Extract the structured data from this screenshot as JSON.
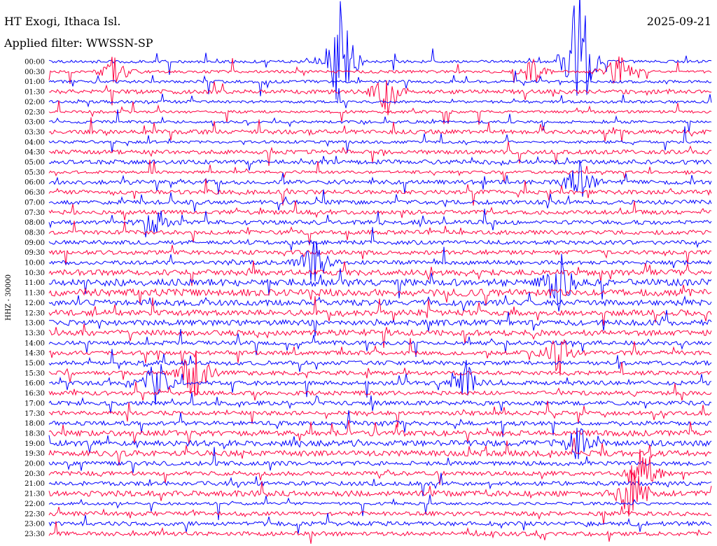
{
  "header": {
    "station": "HT Exogi, Ithaca Isl.",
    "date": "2025-09-21",
    "filter": "Applied filter: WWSSN-SP"
  },
  "chart_data": {
    "type": "line",
    "title": "HT Exogi, Ithaca Isl.",
    "subtitle": "Applied filter: WWSSN-SP",
    "ylabel": "HHZ - 30000",
    "date": "2025-09-21",
    "grid": false,
    "colors": [
      "#0000ff",
      "#ff0040"
    ],
    "rows": [
      "00:00",
      "00:30",
      "01:00",
      "01:30",
      "02:00",
      "02:30",
      "03:00",
      "03:30",
      "04:00",
      "04:30",
      "05:00",
      "05:30",
      "06:00",
      "06:30",
      "07:00",
      "07:30",
      "08:00",
      "08:30",
      "09:00",
      "09:30",
      "10:00",
      "10:30",
      "11:00",
      "11:30",
      "12:00",
      "12:30",
      "13:00",
      "13:30",
      "14:00",
      "14:30",
      "15:00",
      "15:30",
      "16:00",
      "16:30",
      "17:00",
      "17:30",
      "18:00",
      "18:30",
      "19:00",
      "19:30",
      "20:00",
      "20:30",
      "21:00",
      "21:30",
      "22:00",
      "22:30",
      "23:00",
      "23:30"
    ],
    "noise_level": [
      2,
      2,
      2,
      3,
      2,
      2,
      2,
      3,
      2,
      3,
      3,
      2,
      3,
      3,
      3,
      3,
      3,
      3,
      3,
      3,
      3,
      4,
      5,
      5,
      4,
      4,
      4,
      4,
      3,
      3,
      3,
      3,
      3,
      3,
      3,
      3,
      3,
      4,
      4,
      4,
      3,
      3,
      3,
      4,
      2,
      3,
      3,
      3
    ],
    "events": [
      {
        "row": 0,
        "x": 0.44,
        "amp": 120
      },
      {
        "row": 0,
        "x": 0.8,
        "amp": 160
      },
      {
        "row": 1,
        "x": 0.1,
        "amp": 30
      },
      {
        "row": 1,
        "x": 0.73,
        "amp": 25
      },
      {
        "row": 1,
        "x": 0.86,
        "amp": 30
      },
      {
        "row": 3,
        "x": 0.51,
        "amp": 45
      },
      {
        "row": 12,
        "x": 0.8,
        "amp": 40
      },
      {
        "row": 16,
        "x": 0.16,
        "amp": 20
      },
      {
        "row": 20,
        "x": 0.4,
        "amp": 40
      },
      {
        "row": 22,
        "x": 0.77,
        "amp": 60
      },
      {
        "row": 29,
        "x": 0.77,
        "amp": 35
      },
      {
        "row": 31,
        "x": 0.22,
        "amp": 60
      },
      {
        "row": 32,
        "x": 0.16,
        "amp": 45
      },
      {
        "row": 32,
        "x": 0.63,
        "amp": 30
      },
      {
        "row": 38,
        "x": 0.8,
        "amp": 30
      },
      {
        "row": 41,
        "x": 0.9,
        "amp": 40
      },
      {
        "row": 43,
        "x": 0.88,
        "amp": 60
      }
    ]
  }
}
